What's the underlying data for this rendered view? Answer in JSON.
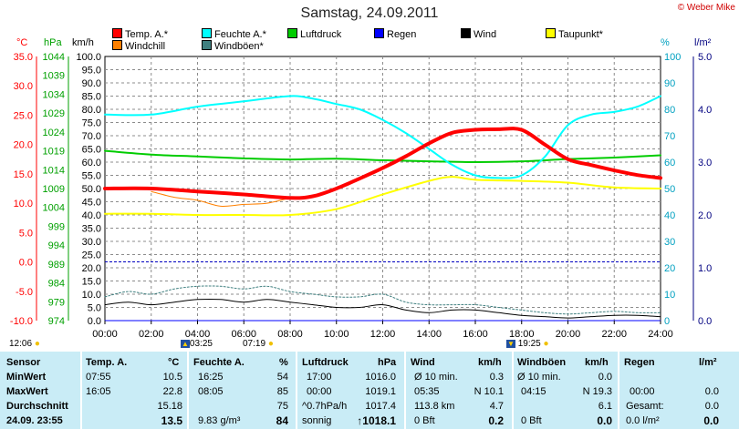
{
  "title": "Samstag, 24.09.2011",
  "watermark": "© Weber Mike",
  "legend": [
    {
      "label": "Temp. A.*",
      "color": "#ff0000"
    },
    {
      "label": "Feuchte A.*",
      "color": "#00ffff"
    },
    {
      "label": "Luftdruck",
      "color": "#00cc00"
    },
    {
      "label": "Regen",
      "color": "#0000ff"
    },
    {
      "label": "Wind",
      "color": "#000000"
    },
    {
      "label": "Taupunkt*",
      "color": "#ffff00"
    },
    {
      "label": "Windchill",
      "color": "#ff8000"
    },
    {
      "label": "Windböen*",
      "color": "#408080"
    }
  ],
  "axis_heads": {
    "temp": "°C",
    "press": "hPa",
    "wind": "km/h",
    "hum": "%",
    "rain": "l/m²"
  },
  "sun_marks": {
    "rise": "12:06",
    "sunrise_time": "03:25",
    "t1": "07:19",
    "sunset_time": "19:25"
  },
  "chart_data": {
    "type": "line",
    "x_ticks": [
      "00:00",
      "02:00",
      "04:00",
      "06:00",
      "08:00",
      "10:00",
      "12:00",
      "14:00",
      "16:00",
      "18:00",
      "20:00",
      "22:00",
      "24:00"
    ],
    "axes": {
      "temp_c": {
        "ticks": [
          "35.0",
          "30.0",
          "25.0",
          "20.0",
          "15.0",
          "10.0",
          "5.0",
          "0.0",
          "-5.0",
          "-10.0"
        ],
        "range": [
          -10,
          35
        ]
      },
      "pressure_hpa": {
        "ticks": [
          "1044",
          "1039",
          "1034",
          "1029",
          "1024",
          "1019",
          "1014",
          "1009",
          "1004",
          "999",
          "994",
          "989",
          "984",
          "979",
          "974"
        ],
        "range": [
          974,
          1044
        ]
      },
      "wind_kmh": {
        "ticks": [
          "100.0",
          "95.0",
          "90.0",
          "85.0",
          "80.0",
          "75.0",
          "70.0",
          "65.0",
          "60.0",
          "55.0",
          "50.0",
          "45.0",
          "40.0",
          "35.0",
          "30.0",
          "25.0",
          "20.0",
          "15.0",
          "10.0",
          "5.0",
          "0.0"
        ],
        "range": [
          0,
          100
        ]
      },
      "humidity_pct": {
        "ticks": [
          "100",
          "90",
          "80",
          "70",
          "60",
          "50",
          "40",
          "30",
          "20",
          "10",
          "0"
        ],
        "range": [
          0,
          100
        ]
      },
      "rain_lm2": {
        "ticks": [
          "5.0",
          "4.0",
          "3.0",
          "2.0",
          "1.0",
          "0.0"
        ],
        "range": [
          0,
          5
        ]
      }
    },
    "series": [
      {
        "name": "Temp. A.*",
        "axis": "temp_c",
        "color": "#ff0000",
        "x": [
          0,
          2,
          4,
          6,
          8,
          9,
          10,
          11,
          12,
          13,
          14,
          15,
          16,
          17,
          18,
          19,
          20,
          21,
          22,
          23,
          24
        ],
        "y": [
          12.5,
          12.5,
          12.0,
          11.5,
          10.9,
          11.2,
          12.5,
          14.2,
          16.0,
          18.0,
          20.2,
          22.0,
          22.5,
          22.6,
          22.5,
          20.0,
          17.5,
          16.5,
          15.6,
          14.8,
          14.3
        ]
      },
      {
        "name": "Windchill",
        "axis": "temp_c",
        "color": "#ff8000",
        "x": [
          2,
          3,
          4,
          5,
          6,
          7,
          8
        ],
        "y": [
          12.0,
          11.0,
          10.5,
          9.5,
          9.8,
          10.0,
          10.9
        ]
      },
      {
        "name": "Feuchte A.*",
        "axis": "humidity_pct",
        "color": "#00ffff",
        "x": [
          0,
          2,
          4,
          6,
          8,
          9,
          10,
          11,
          12,
          13,
          14,
          15,
          16,
          17,
          18,
          19,
          20,
          21,
          22,
          23,
          24
        ],
        "y": [
          78,
          78,
          81,
          83,
          85,
          84,
          82,
          80,
          76,
          71,
          65,
          59,
          55,
          54,
          55,
          62,
          74,
          78,
          79,
          81,
          85
        ]
      },
      {
        "name": "Luftdruck",
        "axis": "pressure_hpa",
        "color": "#00cc00",
        "x": [
          0,
          2,
          4,
          6,
          8,
          10,
          12,
          14,
          16,
          18,
          20,
          22,
          24
        ],
        "y": [
          1019.0,
          1018.0,
          1017.5,
          1017.0,
          1016.7,
          1016.9,
          1016.5,
          1016.2,
          1016.0,
          1016.2,
          1016.8,
          1017.2,
          1017.8
        ]
      },
      {
        "name": "Taupunkt*",
        "axis": "temp_c",
        "color": "#ffff00",
        "x": [
          0,
          2,
          4,
          6,
          8,
          10,
          12,
          14,
          15,
          16,
          18,
          20,
          22,
          24
        ],
        "y": [
          8.2,
          8.2,
          8.0,
          8.0,
          8.0,
          9.0,
          11.5,
          13.8,
          14.5,
          14.0,
          13.8,
          13.5,
          12.7,
          12.5
        ]
      },
      {
        "name": "Wind",
        "axis": "wind_kmh",
        "color": "#000000",
        "x": [
          0,
          1,
          2,
          3,
          4,
          5,
          6,
          7,
          8,
          9,
          10,
          11,
          12,
          13,
          14,
          15,
          16,
          17,
          18,
          19,
          20,
          21,
          22,
          23,
          24
        ],
        "y": [
          6,
          7,
          6,
          7,
          8,
          8,
          7,
          8,
          7,
          6,
          5,
          5,
          6,
          4,
          3,
          4,
          4,
          3,
          2,
          1.5,
          1,
          1.5,
          2,
          2,
          1.5
        ]
      },
      {
        "name": "Windböen*",
        "axis": "wind_kmh",
        "color": "#408080",
        "x": [
          0,
          1,
          2,
          3,
          4,
          5,
          6,
          7,
          8,
          9,
          10,
          11,
          12,
          13,
          14,
          15,
          16,
          17,
          18,
          19,
          20,
          21,
          22,
          23,
          24
        ],
        "y": [
          9,
          11,
          10,
          12,
          13,
          13,
          12,
          13,
          11,
          10,
          9,
          9,
          10,
          7,
          6,
          6,
          6,
          5,
          4,
          3,
          2.5,
          3,
          3.5,
          3,
          3
        ]
      },
      {
        "name": "Regen",
        "axis": "wind_kmh",
        "color": "#0000ff",
        "x": [
          0,
          24
        ],
        "y": [
          0,
          0
        ]
      }
    ],
    "reference_line": {
      "axis": "temp_c",
      "value": 0.0,
      "color": "#0000c0"
    }
  },
  "table": {
    "col1": {
      "head": "Sensor",
      "rows": [
        "MinWert",
        "MaxWert",
        "Durchschnitt",
        "24.09. 23:55"
      ]
    },
    "col2": {
      "head": "Temp. A.",
      "unit": "°C",
      "rows": [
        [
          "07:55",
          "10.5"
        ],
        [
          "16:05",
          "22.8"
        ],
        [
          "",
          "15.18"
        ],
        [
          "",
          "13.5"
        ]
      ]
    },
    "col3": {
      "head": "Feuchte A.",
      "unit": "%",
      "rows": [
        [
          "16:25",
          "54"
        ],
        [
          "08:05",
          "85"
        ],
        [
          "",
          "75"
        ],
        [
          "9.83 g/m³",
          "84"
        ]
      ]
    },
    "col4": {
      "head": "Luftdruck",
      "unit": "hPa",
      "rows": [
        [
          "17:00",
          "1016.0"
        ],
        [
          "00:00",
          "1019.1"
        ],
        [
          "^0.7hPa/h",
          "1017.4"
        ],
        [
          "sonnig",
          "↑1018.1"
        ]
      ]
    },
    "col5": {
      "head": "Wind",
      "unit": "km/h",
      "rows": [
        [
          "Ø 10 min.",
          "0.3"
        ],
        [
          "05:35",
          "N 10.1"
        ],
        [
          "113.8 km",
          "4.7"
        ],
        [
          "0 Bft",
          "0.2"
        ]
      ]
    },
    "col6": {
      "head": "Windböen",
      "unit": "km/h",
      "rows": [
        [
          "Ø 10 min.",
          "0.0"
        ],
        [
          "04:15",
          "N 19.3"
        ],
        [
          "",
          "6.1"
        ],
        [
          "0 Bft",
          "0.0"
        ]
      ]
    },
    "col7": {
      "head": "Regen",
      "unit": "l/m²",
      "rows": [
        [
          "",
          ""
        ],
        [
          "00:00",
          "0.0"
        ],
        [
          "Gesamt:",
          "0.0"
        ],
        [
          "0.0 l/m²",
          "0.0"
        ]
      ]
    }
  }
}
